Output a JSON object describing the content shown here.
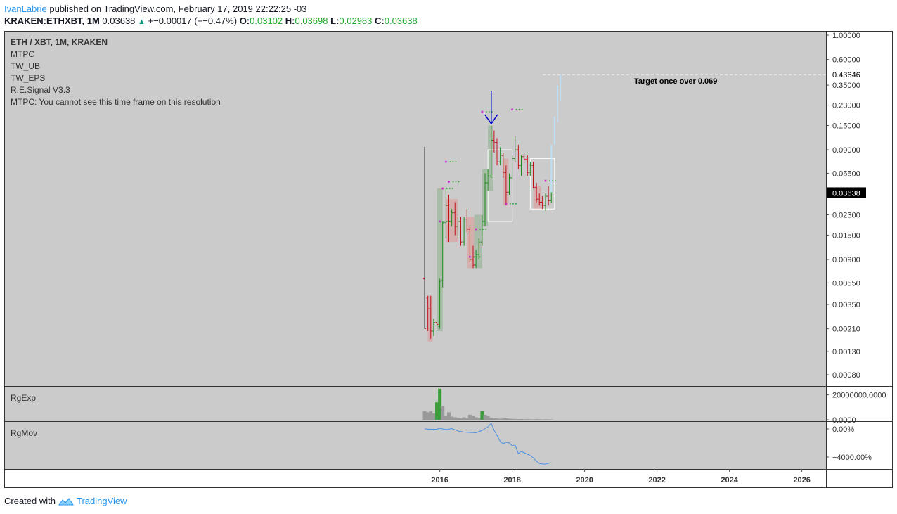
{
  "header": {
    "author": "IvanLabrie",
    "published_text": "published on TradingView.com, February 17, 2019 22:22:25 -03",
    "symbol": "KRAKEN:ETHXBT, 1M",
    "last": "0.03638",
    "change": "+−0.00017 (+−0.47%)",
    "open_label": "O:",
    "open": "0.03102",
    "high_label": "H:",
    "high": "0.03698",
    "low_label": "L:",
    "low": "0.02983",
    "close_label": "C:",
    "close": "0.03638"
  },
  "legend": {
    "title": "ETH / XBT, 1M, KRAKEN",
    "indicators": [
      "MTPC",
      "TW_UB",
      "TW_EPS",
      "R.E.Signal V3.3",
      "MTPC: You cannot see this time frame on this resolution"
    ]
  },
  "footer": {
    "created_with": "Created with",
    "brand": "TradingView"
  },
  "colors": {
    "panel_bg": "#cbcbcb",
    "up_candle": "#1f8a1f",
    "down_candle": "#c0131c",
    "up_zone": "#a3b8a3",
    "down_zone": "#d7a9a9",
    "projection": "#bde0f7",
    "signal_arrow": "#0000cc",
    "rgmov_line": "#4a90e2"
  },
  "chart_data": [
    {
      "type": "candlestick",
      "title": "ETH / XBT, 1M, KRAKEN",
      "y_scale": "log",
      "ylim": [
        0.0006,
        1.2
      ],
      "x_range": [
        2015.0,
        2026.5
      ],
      "x_ticks": [
        "2016",
        "2018",
        "2020",
        "2022",
        "2024",
        "2026"
      ],
      "y_ticks": [
        "1.00000",
        "0.60000",
        "0.35000",
        "0.23000",
        "0.15000",
        "0.09000",
        "0.05500",
        "0.03500",
        "0.02300",
        "0.01500",
        "0.00900",
        "0.00550",
        "0.00350",
        "0.00210",
        "0.00130",
        "0.00080"
      ],
      "last_price_label": "0.03638",
      "target_price_label": "0.43646",
      "annotation": "Target once over 0.069",
      "candles": [
        {
          "t": 2015.58,
          "o": 0.006,
          "h": 0.096,
          "l": 0.0021,
          "c": 0.0021
        },
        {
          "t": 2015.67,
          "o": 0.004,
          "h": 0.0042,
          "l": 0.002,
          "c": 0.0032
        },
        {
          "t": 2015.75,
          "o": 0.0032,
          "h": 0.0042,
          "l": 0.0017,
          "c": 0.002
        },
        {
          "t": 2015.83,
          "o": 0.002,
          "h": 0.0026,
          "l": 0.0018,
          "c": 0.0024
        },
        {
          "t": 2015.92,
          "o": 0.0024,
          "h": 0.0025,
          "l": 0.002,
          "c": 0.0023
        },
        {
          "t": 2016.0,
          "o": 0.0022,
          "h": 0.006,
          "l": 0.0021,
          "c": 0.0057
        },
        {
          "t": 2016.08,
          "o": 0.0058,
          "h": 0.02,
          "l": 0.005,
          "c": 0.0195
        },
        {
          "t": 2016.17,
          "o": 0.0195,
          "h": 0.04,
          "l": 0.014,
          "c": 0.028
        },
        {
          "t": 2016.25,
          "o": 0.028,
          "h": 0.035,
          "l": 0.013,
          "c": 0.02
        },
        {
          "t": 2016.33,
          "o": 0.02,
          "h": 0.026,
          "l": 0.018,
          "c": 0.024
        },
        {
          "t": 2016.42,
          "o": 0.024,
          "h": 0.03,
          "l": 0.015,
          "c": 0.018
        },
        {
          "t": 2016.5,
          "o": 0.018,
          "h": 0.022,
          "l": 0.014,
          "c": 0.02
        },
        {
          "t": 2016.58,
          "o": 0.02,
          "h": 0.022,
          "l": 0.012,
          "c": 0.013
        },
        {
          "t": 2016.67,
          "o": 0.013,
          "h": 0.022,
          "l": 0.012,
          "c": 0.021
        },
        {
          "t": 2016.75,
          "o": 0.021,
          "h": 0.026,
          "l": 0.016,
          "c": 0.017
        },
        {
          "t": 2016.83,
          "o": 0.017,
          "h": 0.018,
          "l": 0.0085,
          "c": 0.009
        },
        {
          "t": 2016.92,
          "o": 0.009,
          "h": 0.012,
          "l": 0.0075,
          "c": 0.008
        },
        {
          "t": 2017.0,
          "o": 0.008,
          "h": 0.011,
          "l": 0.0075,
          "c": 0.01
        },
        {
          "t": 2017.08,
          "o": 0.01,
          "h": 0.014,
          "l": 0.009,
          "c": 0.013
        },
        {
          "t": 2017.17,
          "o": 0.013,
          "h": 0.023,
          "l": 0.012,
          "c": 0.02
        },
        {
          "t": 2017.25,
          "o": 0.02,
          "h": 0.055,
          "l": 0.018,
          "c": 0.045
        },
        {
          "t": 2017.33,
          "o": 0.045,
          "h": 0.06,
          "l": 0.038,
          "c": 0.052
        },
        {
          "t": 2017.42,
          "o": 0.052,
          "h": 0.15,
          "l": 0.05,
          "c": 0.11
        },
        {
          "t": 2017.5,
          "o": 0.11,
          "h": 0.135,
          "l": 0.085,
          "c": 0.105
        },
        {
          "t": 2017.58,
          "o": 0.105,
          "h": 0.115,
          "l": 0.065,
          "c": 0.07
        },
        {
          "t": 2017.67,
          "o": 0.07,
          "h": 0.095,
          "l": 0.065,
          "c": 0.08
        },
        {
          "t": 2017.75,
          "o": 0.08,
          "h": 0.085,
          "l": 0.05,
          "c": 0.056
        },
        {
          "t": 2017.83,
          "o": 0.056,
          "h": 0.065,
          "l": 0.028,
          "c": 0.037
        },
        {
          "t": 2017.92,
          "o": 0.037,
          "h": 0.055,
          "l": 0.035,
          "c": 0.05
        },
        {
          "t": 2018.0,
          "o": 0.05,
          "h": 0.08,
          "l": 0.048,
          "c": 0.075
        },
        {
          "t": 2018.08,
          "o": 0.075,
          "h": 0.12,
          "l": 0.07,
          "c": 0.09
        },
        {
          "t": 2018.17,
          "o": 0.09,
          "h": 0.1,
          "l": 0.06,
          "c": 0.065
        },
        {
          "t": 2018.25,
          "o": 0.065,
          "h": 0.08,
          "l": 0.052,
          "c": 0.078
        },
        {
          "t": 2018.33,
          "o": 0.078,
          "h": 0.085,
          "l": 0.068,
          "c": 0.074
        },
        {
          "t": 2018.42,
          "o": 0.074,
          "h": 0.08,
          "l": 0.052,
          "c": 0.056
        },
        {
          "t": 2018.5,
          "o": 0.056,
          "h": 0.07,
          "l": 0.052,
          "c": 0.065
        },
        {
          "t": 2018.58,
          "o": 0.065,
          "h": 0.07,
          "l": 0.04,
          "c": 0.041
        },
        {
          "t": 2018.67,
          "o": 0.041,
          "h": 0.045,
          "l": 0.03,
          "c": 0.032
        },
        {
          "t": 2018.75,
          "o": 0.032,
          "h": 0.036,
          "l": 0.028,
          "c": 0.03
        },
        {
          "t": 2018.83,
          "o": 0.03,
          "h": 0.034,
          "l": 0.026,
          "c": 0.028
        },
        {
          "t": 2018.92,
          "o": 0.028,
          "h": 0.036,
          "l": 0.025,
          "c": 0.034
        },
        {
          "t": 2019.0,
          "o": 0.034,
          "h": 0.042,
          "l": 0.028,
          "c": 0.031
        },
        {
          "t": 2019.08,
          "o": 0.031,
          "h": 0.037,
          "l": 0.0298,
          "c": 0.0364
        }
      ],
      "projection": [
        {
          "t": 2019.08,
          "lo": 0.036,
          "hi": 0.1
        },
        {
          "t": 2019.17,
          "lo": 0.1,
          "hi": 0.18
        },
        {
          "t": 2019.25,
          "lo": 0.16,
          "hi": 0.35
        },
        {
          "t": 2019.33,
          "lo": 0.25,
          "hi": 0.44
        }
      ]
    },
    {
      "type": "bar",
      "title": "RgExp",
      "ylim": [
        0,
        26000000
      ],
      "y_ticks": [
        "20000000.0000",
        "0.0000"
      ],
      "x": [
        2015.58,
        2015.67,
        2015.75,
        2015.83,
        2015.92,
        2016.0,
        2016.08,
        2016.17,
        2016.25,
        2016.33,
        2016.42,
        2016.5,
        2016.58,
        2016.67,
        2016.75,
        2016.83,
        2016.92,
        2017.0,
        2017.08,
        2017.17,
        2017.25,
        2017.33,
        2017.42,
        2017.5,
        2017.58,
        2017.67,
        2017.75,
        2017.83,
        2017.92,
        2018.0,
        2018.08,
        2018.17,
        2018.25,
        2018.33,
        2018.42,
        2018.5,
        2018.58,
        2018.67,
        2018.75,
        2018.83,
        2018.92,
        2019.0,
        2019.08
      ],
      "values": [
        7000000,
        6000000,
        7000000,
        5000000,
        14000000,
        25000000,
        11000000,
        3000000,
        6000000,
        2500000,
        2000000,
        1500000,
        1200000,
        2000000,
        1200000,
        4000000,
        3000000,
        2000000,
        1500000,
        7000000,
        4000000,
        3000000,
        1500000,
        1200000,
        1000000,
        800000,
        1000000,
        1200000,
        900000,
        700000,
        600000,
        500000,
        600000,
        400000,
        500000,
        400000,
        300000,
        500000,
        400000,
        300000,
        400000,
        300000,
        300000
      ],
      "highlight": [
        4,
        5,
        19
      ]
    },
    {
      "type": "line",
      "title": "RgMov",
      "ylim": [
        -5400,
        800
      ],
      "y_ticks": [
        "0.00%",
        "−4000.00%"
      ],
      "x": [
        2015.58,
        2015.75,
        2015.92,
        2016.0,
        2016.17,
        2016.33,
        2016.5,
        2016.67,
        2016.83,
        2017.0,
        2017.17,
        2017.33,
        2017.42,
        2017.5,
        2017.58,
        2017.67,
        2017.75,
        2017.83,
        2017.92,
        2018.0,
        2018.08,
        2018.17,
        2018.25,
        2018.42,
        2018.5,
        2018.58,
        2018.67,
        2018.75,
        2018.83,
        2018.92,
        2019.0,
        2019.08
      ],
      "y": [
        0,
        -50,
        -40,
        100,
        -100,
        50,
        -300,
        -450,
        -500,
        -550,
        -200,
        300,
        800,
        -200,
        -900,
        -1800,
        -2100,
        -1900,
        -2000,
        -2400,
        -2300,
        -3500,
        -3200,
        -3600,
        -3800,
        -4100,
        -4600,
        -4900,
        -5000,
        -5000,
        -4900,
        -4800
      ]
    }
  ]
}
